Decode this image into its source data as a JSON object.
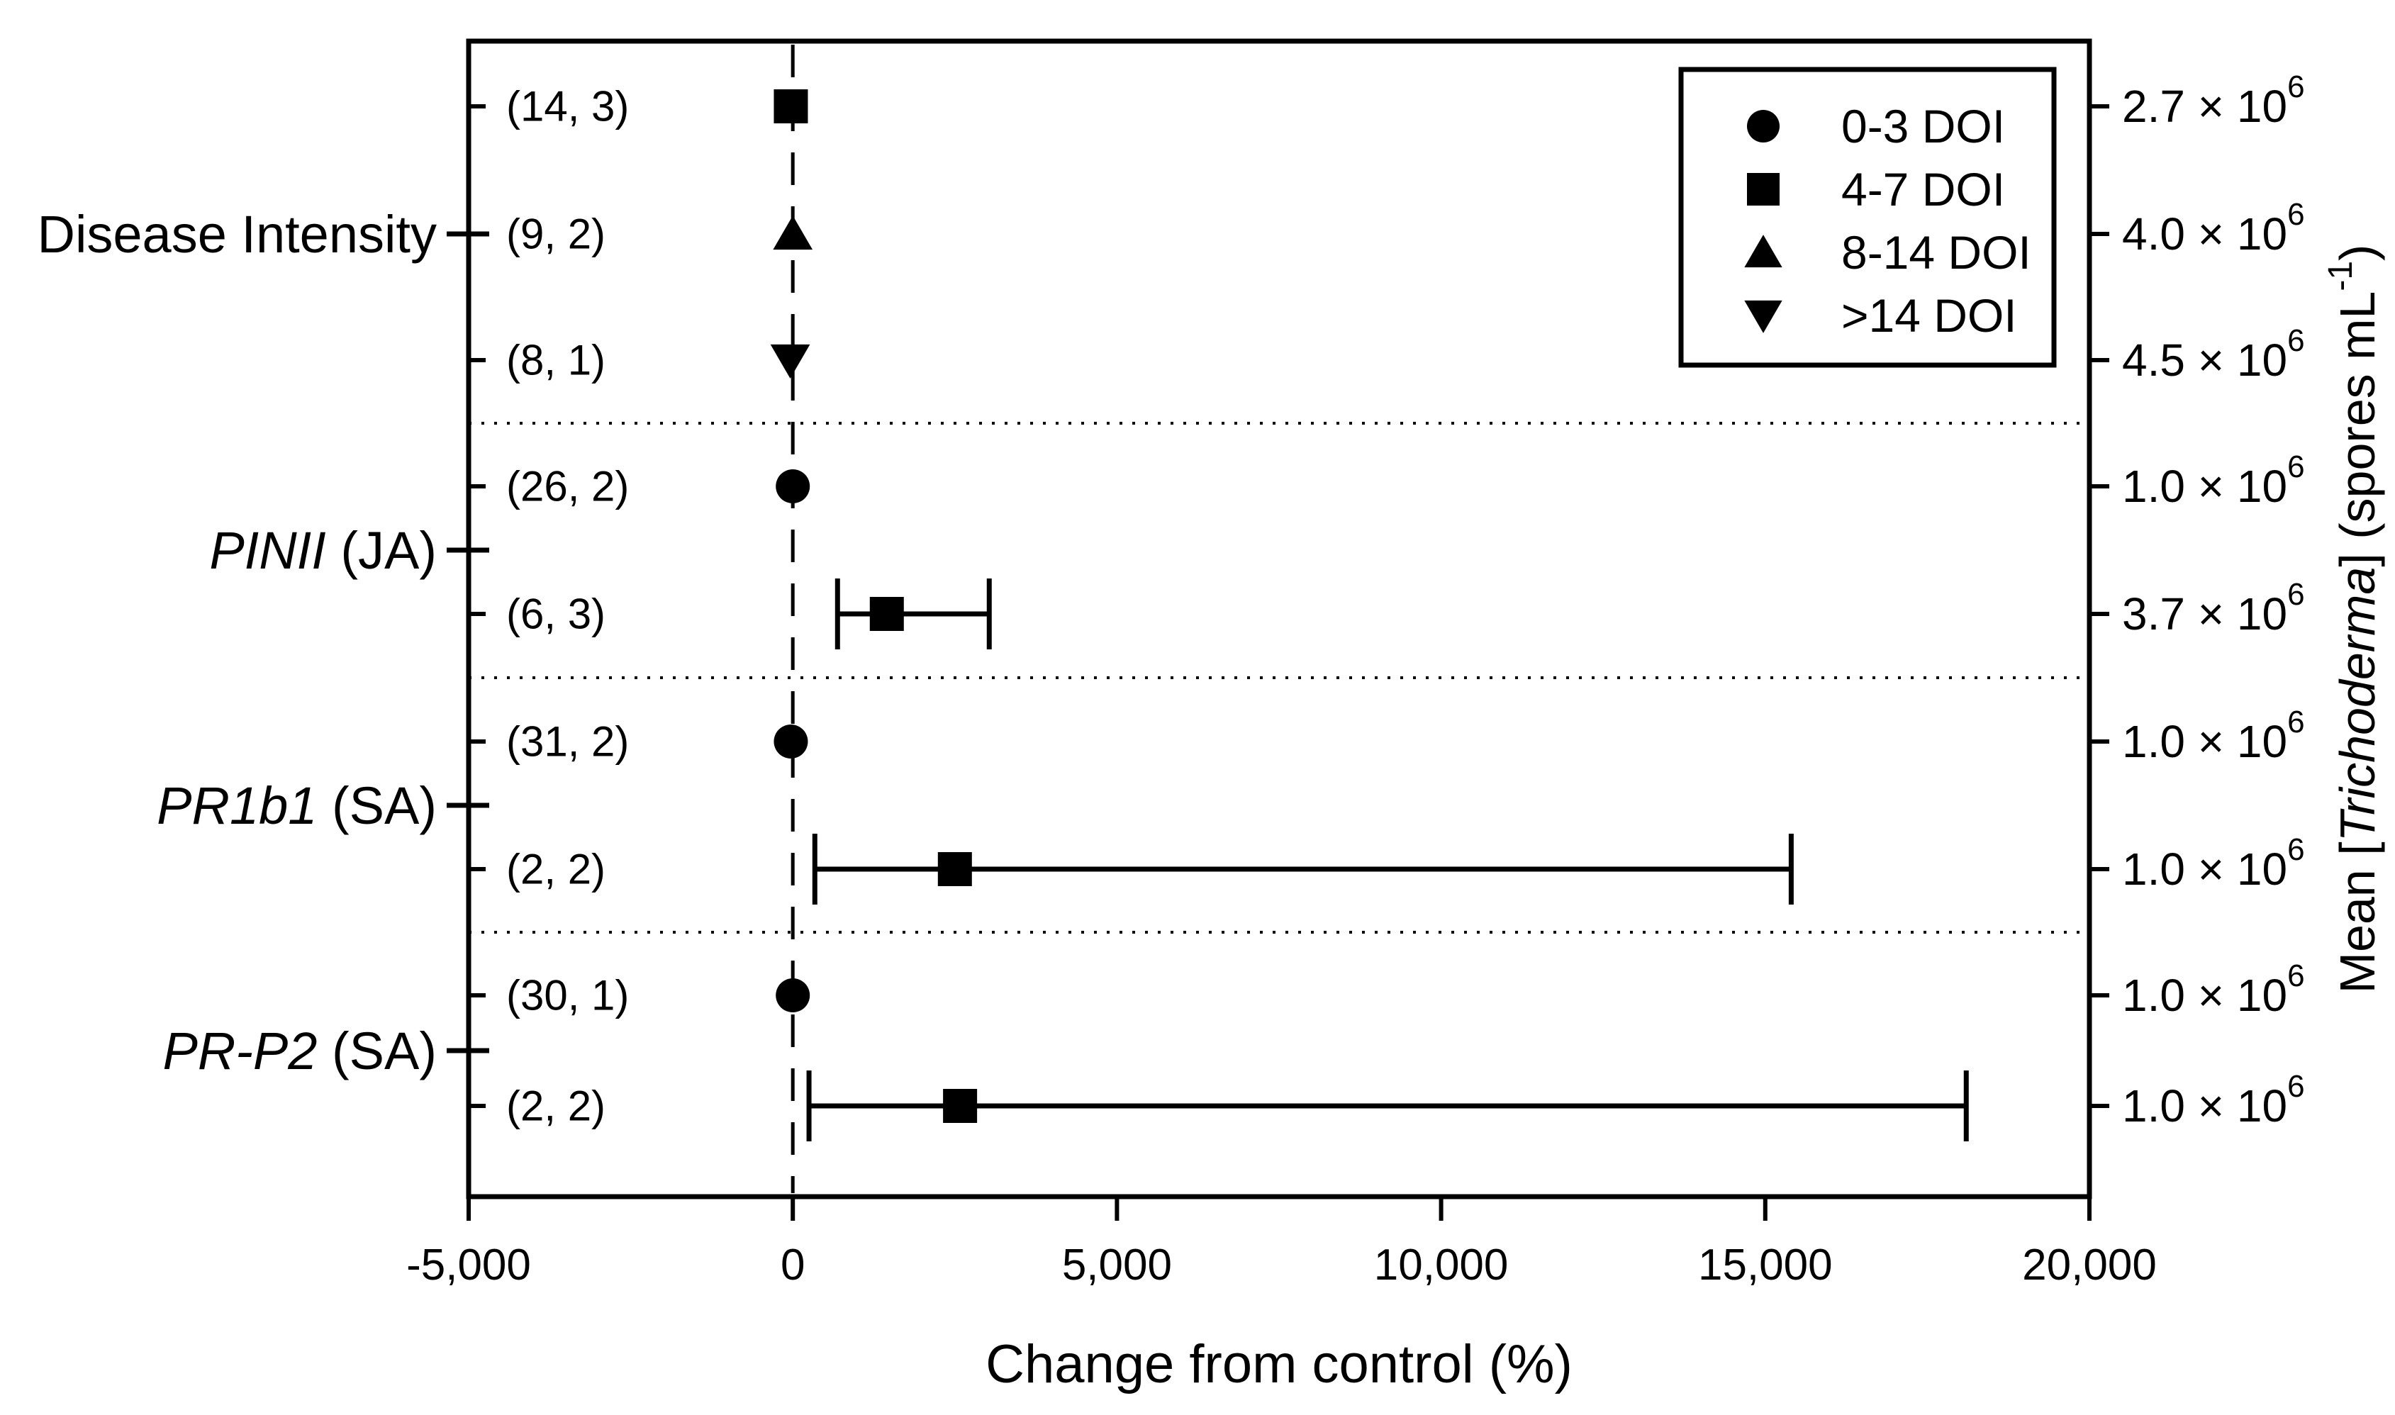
{
  "chart_data": {
    "type": "scatter",
    "subtype": "horizontal-forest-plot",
    "title": "",
    "xlabel": "Change from control (%)",
    "xlim": [
      -5000,
      20000
    ],
    "x_ticks": {
      "values": [
        -5000,
        0,
        5000,
        10000,
        15000,
        20000
      ],
      "labels": [
        "-5,000",
        "0",
        "5,000",
        "10,000",
        "15,000",
        "20,000"
      ]
    },
    "reference_line_x": 0,
    "grid": "off",
    "axis_color": "#000000",
    "marker_color": "#000000",
    "right_axis_title": {
      "prefix": "Mean [",
      "italic": "Trichoderma",
      "mid": "] (spores mL",
      "superscript": "-1",
      "close": ")"
    },
    "legend": {
      "position": "top-right",
      "items": [
        {
          "marker": "circle",
          "label": "0-3 DOI"
        },
        {
          "marker": "square",
          "label": "4-7 DOI"
        },
        {
          "marker": "triangle-up",
          "label": "8-14 DOI"
        },
        {
          "marker": "triangle-down",
          "label": ">14 DOI"
        }
      ]
    },
    "groups": [
      {
        "label_italic": "",
        "label_regular": "Disease Intensity",
        "row_indices": [
          0,
          1,
          2
        ]
      },
      {
        "label_italic": "PINII",
        "label_regular": " (JA)",
        "row_indices": [
          3,
          4
        ]
      },
      {
        "label_italic": "PR1b1",
        "label_regular": " (SA)",
        "row_indices": [
          5,
          6
        ]
      },
      {
        "label_italic": "PR-P2",
        "label_regular": " (SA)",
        "row_indices": [
          7,
          8
        ]
      }
    ],
    "separators_after_rows": [
      2,
      4,
      6
    ],
    "rows": [
      {
        "group": "Disease Intensity",
        "annotation": "(14, 3)",
        "series": "4-7 DOI",
        "marker": "square",
        "x": -30,
        "ci_low": null,
        "ci_high": null,
        "right_label": {
          "mantissa": "2.7 × 10",
          "exponent": "6"
        }
      },
      {
        "group": "Disease Intensity",
        "annotation": "(9, 2)",
        "series": "8-14 DOI",
        "marker": "triangle-up",
        "x": 0,
        "ci_low": null,
        "ci_high": null,
        "right_label": {
          "mantissa": "4.0 × 10",
          "exponent": "6"
        }
      },
      {
        "group": "Disease Intensity",
        "annotation": "(8, 1)",
        "series": ">14 DOI",
        "marker": "triangle-down",
        "x": -40,
        "ci_low": null,
        "ci_high": null,
        "right_label": {
          "mantissa": "4.5 × 10",
          "exponent": "6"
        }
      },
      {
        "group": "PINII (JA)",
        "annotation": "(26, 2)",
        "series": "0-3 DOI",
        "marker": "circle",
        "x": 0,
        "ci_low": null,
        "ci_high": null,
        "right_label": {
          "mantissa": "1.0 × 10",
          "exponent": "6"
        }
      },
      {
        "group": "PINII (JA)",
        "annotation": "(6, 3)",
        "series": "4-7 DOI",
        "marker": "square",
        "x": 1450,
        "ci_low": 690,
        "ci_high": 3030,
        "right_label": {
          "mantissa": "3.7 × 10",
          "exponent": "6"
        }
      },
      {
        "group": "PR1b1 (SA)",
        "annotation": "(31, 2)",
        "series": "0-3 DOI",
        "marker": "circle",
        "x": -30,
        "ci_low": null,
        "ci_high": null,
        "right_label": {
          "mantissa": "1.0 × 10",
          "exponent": "6"
        }
      },
      {
        "group": "PR1b1 (SA)",
        "annotation": "(2, 2)",
        "series": "4-7 DOI",
        "marker": "square",
        "x": 2500,
        "ci_low": 340,
        "ci_high": 15400,
        "right_label": {
          "mantissa": "1.0 × 10",
          "exponent": "6"
        }
      },
      {
        "group": "PR-P2 (SA)",
        "annotation": "(30, 1)",
        "series": "0-3 DOI",
        "marker": "circle",
        "x": 0,
        "ci_low": null,
        "ci_high": null,
        "right_label": {
          "mantissa": "1.0 × 10",
          "exponent": "6"
        }
      },
      {
        "group": "PR-P2 (SA)",
        "annotation": "(2, 2)",
        "series": "4-7 DOI",
        "marker": "square",
        "x": 2580,
        "ci_low": 250,
        "ci_high": 18100,
        "right_label": {
          "mantissa": "1.0 × 10",
          "exponent": "6"
        }
      }
    ]
  }
}
